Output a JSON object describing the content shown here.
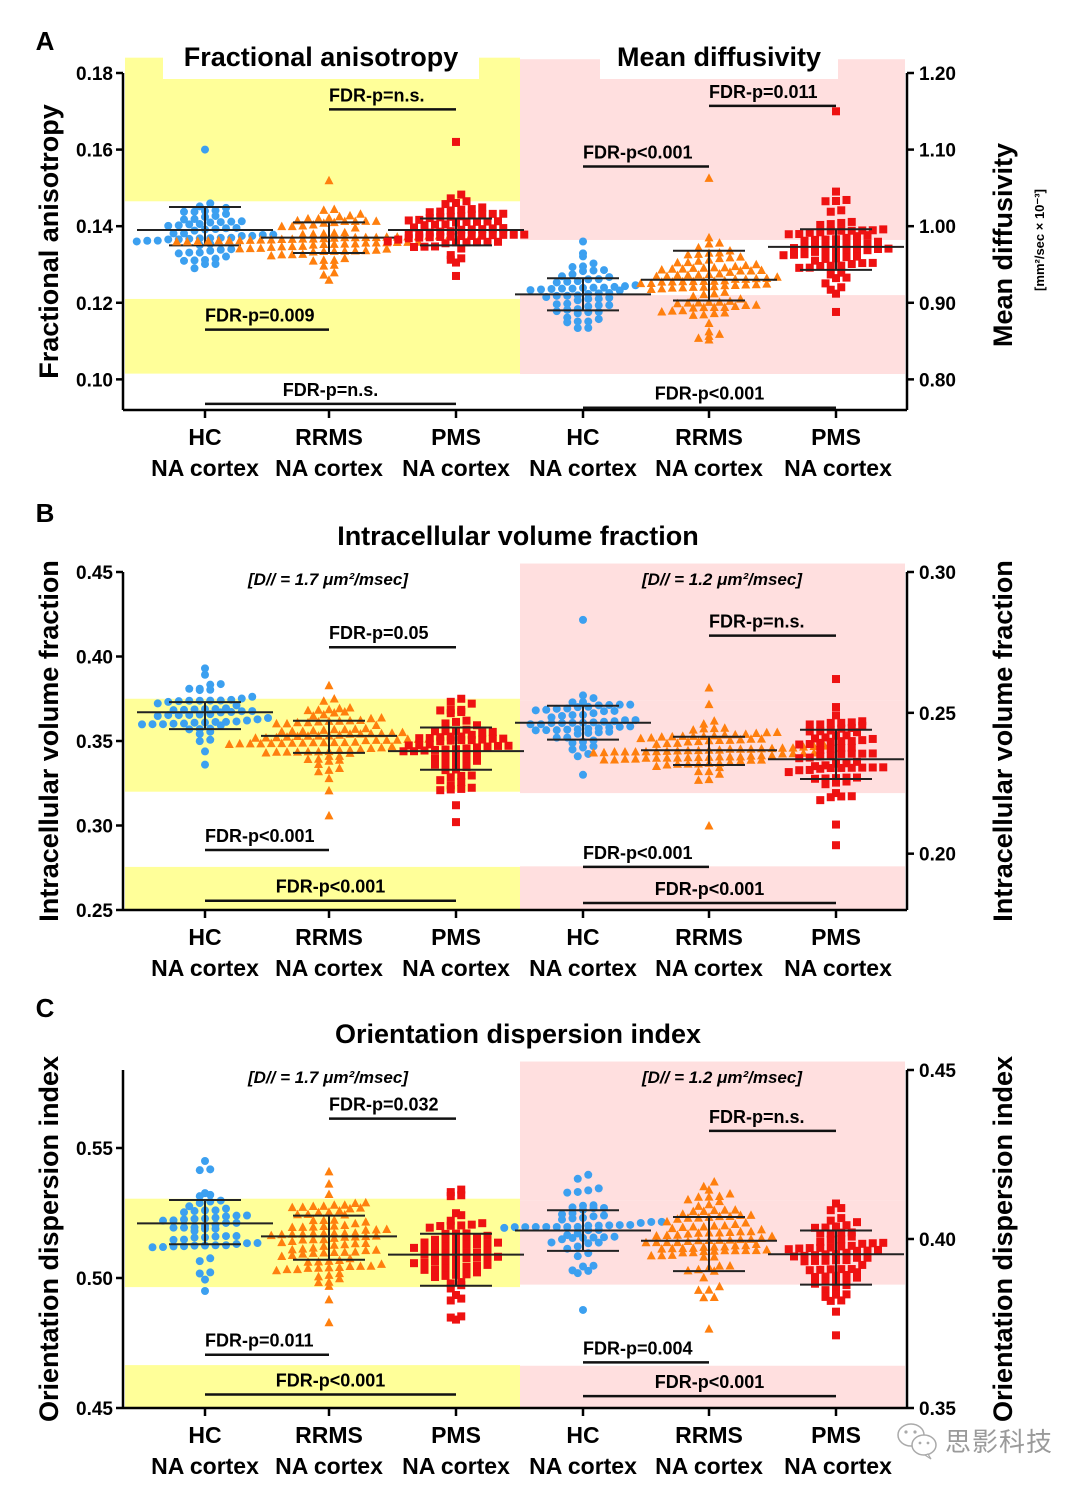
{
  "chart_data": [
    {
      "panel_label": "A",
      "type": "scatter",
      "subtype": "dot-plot with mean ± SD",
      "left_title": "Fractional anisotropy",
      "right_title": "Mean diffusivity",
      "left_ylabel": "Fractional anisotropy",
      "right_ylabel": "Mean diffusivity",
      "right_ylabel_units": "[mm²/sec × 10⁻³]",
      "left_ylim": [
        0.092,
        0.18
      ],
      "right_ylim": [
        0.76,
        1.2
      ],
      "left_yticks": [
        "0.10",
        "0.12",
        "0.14",
        "0.16",
        "0.18"
      ],
      "right_yticks": [
        "0.80",
        "0.90",
        "1.00",
        "1.10",
        "1.20"
      ],
      "categories": [
        "HC",
        "RRMS",
        "PMS",
        "HC",
        "RRMS",
        "PMS"
      ],
      "category_sublabel": "NA cortex",
      "series": [
        {
          "name": "HC FA",
          "axis": "left",
          "marker": "circle",
          "color": "#3ca0f0",
          "n": 58,
          "mean": 0.139,
          "sd_low": 0.135,
          "sd_high": 0.145,
          "min": 0.129,
          "max": 0.16
        },
        {
          "name": "RRMS FA",
          "axis": "left",
          "marker": "triangle",
          "color": "#ff7f0e",
          "n": 95,
          "mean": 0.137,
          "sd_low": 0.133,
          "sd_high": 0.141,
          "min": 0.126,
          "max": 0.152
        },
        {
          "name": "PMS FA",
          "axis": "left",
          "marker": "square",
          "color": "#ee1111",
          "n": 70,
          "mean": 0.139,
          "sd_low": 0.135,
          "sd_high": 0.142,
          "min": 0.127,
          "max": 0.162
        },
        {
          "name": "HC MD",
          "axis": "right",
          "marker": "circle",
          "color": "#3ca0f0",
          "n": 58,
          "mean": 0.911,
          "sd_low": 0.89,
          "sd_high": 0.932,
          "min": 0.867,
          "max": 0.98
        },
        {
          "name": "RRMS MD",
          "axis": "right",
          "marker": "triangle",
          "color": "#ff7f0e",
          "n": 95,
          "mean": 0.93,
          "sd_low": 0.903,
          "sd_high": 0.968,
          "min": 0.852,
          "max": 1.063
        },
        {
          "name": "PMS MD",
          "axis": "right",
          "marker": "square",
          "color": "#ee1111",
          "n": 70,
          "mean": 0.973,
          "sd_low": 0.943,
          "sd_high": 0.996,
          "min": 0.888,
          "max": 1.15
        }
      ],
      "shading": [
        {
          "side": "left",
          "color": "#ffff99",
          "bands": [
            [
              0.1465,
              0.184
            ],
            [
              0.1015,
              0.121
            ]
          ]
        },
        {
          "side": "right",
          "color": "#ffdfdf",
          "bands": [
            [
              0.982,
              1.218
            ],
            [
              0.807,
              0.91
            ]
          ]
        }
      ],
      "comparisons": [
        {
          "label": "FDR-p=n.s.",
          "from": 1,
          "to": 2,
          "axis": "left",
          "y": 0.1705
        },
        {
          "label": "FDR-p=0.009",
          "from": 0,
          "to": 1,
          "axis": "left",
          "y": 0.113
        },
        {
          "label": "FDR-p=n.s.",
          "from": 0,
          "to": 2,
          "axis": "left",
          "y": 0.0936
        },
        {
          "label": "FDR-p=0.011",
          "from": 4,
          "to": 5,
          "axis": "right",
          "y": 1.157
        },
        {
          "label": "FDR-p<0.001",
          "from": 3,
          "to": 4,
          "axis": "right",
          "y": 1.078
        },
        {
          "label": "FDR-p<0.001",
          "from": 3,
          "to": 5,
          "axis": "right",
          "y": 0.763
        }
      ]
    },
    {
      "panel_label": "B",
      "type": "scatter",
      "subtype": "dot-plot with mean ± SD",
      "title": "Intracellular volume fraction",
      "left_subtitle": "[D// = 1.7 μm²/msec]",
      "right_subtitle": "[D// = 1.2 μm²/msec]",
      "left_ylabel": "Intracellular volume fraction",
      "right_ylabel": "Intracellular volume fraction",
      "left_ylim": [
        0.25,
        0.45
      ],
      "right_ylim": [
        0.18,
        0.3
      ],
      "left_yticks": [
        "0.25",
        "0.30",
        "0.35",
        "0.40",
        "0.45"
      ],
      "right_yticks": [
        "0.20",
        "0.25",
        "0.30"
      ],
      "categories": [
        "HC",
        "RRMS",
        "PMS",
        "HC",
        "RRMS",
        "PMS"
      ],
      "category_sublabel": "NA cortex",
      "series": [
        {
          "name": "HC ICVF 1.7",
          "axis": "left",
          "marker": "circle",
          "color": "#3ca0f0",
          "n": 58,
          "mean": 0.367,
          "sd_low": 0.357,
          "sd_high": 0.373,
          "min": 0.336,
          "max": 0.393
        },
        {
          "name": "RRMS ICVF 1.7",
          "axis": "left",
          "marker": "triangle",
          "color": "#ff7f0e",
          "n": 95,
          "mean": 0.353,
          "sd_low": 0.343,
          "sd_high": 0.362,
          "min": 0.306,
          "max": 0.383
        },
        {
          "name": "PMS ICVF 1.7",
          "axis": "left",
          "marker": "square",
          "color": "#ee1111",
          "n": 70,
          "mean": 0.344,
          "sd_low": 0.333,
          "sd_high": 0.358,
          "min": 0.302,
          "max": 0.375
        },
        {
          "name": "HC ICVF 1.2",
          "axis": "right",
          "marker": "circle",
          "color": "#3ca0f0",
          "n": 58,
          "mean": 0.2465,
          "sd_low": 0.2405,
          "sd_high": 0.2525,
          "min": 0.228,
          "max": 0.283
        },
        {
          "name": "RRMS ICVF 1.2",
          "axis": "right",
          "marker": "triangle",
          "color": "#ff7f0e",
          "n": 95,
          "mean": 0.2367,
          "sd_low": 0.2315,
          "sd_high": 0.2415,
          "min": 0.21,
          "max": 0.259
        },
        {
          "name": "PMS ICVF 1.2",
          "axis": "right",
          "marker": "square",
          "color": "#ee1111",
          "n": 70,
          "mean": 0.2335,
          "sd_low": 0.2265,
          "sd_high": 0.244,
          "min": 0.203,
          "max": 0.262
        }
      ],
      "shading": [
        {
          "side": "left",
          "color": "#ffff99",
          "bands": [
            [
              0.32,
              0.375
            ],
            [
              0.25,
              0.2755
            ]
          ]
        },
        {
          "side": "right",
          "color": "#ffdfdf",
          "bands": [
            [
              0.2215,
              0.2545
            ],
            [
              0.18,
              0.1955
            ],
            [
              0.2545,
              0.303
            ]
          ]
        }
      ],
      "comparisons": [
        {
          "label": "FDR-p=0.05",
          "from": 1,
          "to": 2,
          "axis": "left",
          "y": 0.4055
        },
        {
          "label": "FDR-p<0.001",
          "from": 0,
          "to": 1,
          "axis": "left",
          "y": 0.2855
        },
        {
          "label": "FDR-p<0.001",
          "from": 0,
          "to": 2,
          "axis": "left",
          "y": 0.2555
        },
        {
          "label": "FDR-p=n.s.",
          "from": 4,
          "to": 5,
          "axis": "right",
          "y": 0.2774
        },
        {
          "label": "FDR-p<0.001",
          "from": 3,
          "to": 4,
          "axis": "right",
          "y": 0.1953
        },
        {
          "label": "FDR-p<0.001",
          "from": 3,
          "to": 5,
          "axis": "right",
          "y": 0.1825
        }
      ]
    },
    {
      "panel_label": "C",
      "type": "scatter",
      "subtype": "dot-plot with mean ± SD",
      "title": "Orientation dispersion index",
      "left_subtitle": "[D// = 1.7 μm²/msec]",
      "right_subtitle": "[D// = 1.2 μm²/msec]",
      "left_ylabel": "Orientation dispersion index",
      "right_ylabel": "Orientation dispersion index",
      "left_ylim": [
        0.45,
        0.58
      ],
      "right_ylim": [
        0.35,
        0.45
      ],
      "left_yticks": [
        "0.45",
        "0.50",
        "0.55"
      ],
      "right_yticks": [
        "0.35",
        "0.40",
        "0.45"
      ],
      "categories": [
        "HC",
        "RRMS",
        "PMS",
        "HC",
        "RRMS",
        "PMS"
      ],
      "category_sublabel": "NA cortex",
      "series": [
        {
          "name": "HC ODI 1.7",
          "axis": "left",
          "marker": "circle",
          "color": "#3ca0f0",
          "n": 58,
          "mean": 0.521,
          "sd_low": 0.513,
          "sd_high": 0.53,
          "min": 0.495,
          "max": 0.545
        },
        {
          "name": "RRMS ODI 1.7",
          "axis": "left",
          "marker": "triangle",
          "color": "#ff7f0e",
          "n": 95,
          "mean": 0.516,
          "sd_low": 0.507,
          "sd_high": 0.524,
          "min": 0.483,
          "max": 0.541
        },
        {
          "name": "PMS ODI 1.7",
          "axis": "left",
          "marker": "square",
          "color": "#ee1111",
          "n": 70,
          "mean": 0.509,
          "sd_low": 0.497,
          "sd_high": 0.517,
          "min": 0.484,
          "max": 0.534
        },
        {
          "name": "HC ODI 1.2",
          "axis": "right",
          "marker": "circle",
          "color": "#3ca0f0",
          "n": 58,
          "mean": 0.4025,
          "sd_low": 0.3965,
          "sd_high": 0.4085,
          "min": 0.379,
          "max": 0.419
        },
        {
          "name": "RRMS ODI 1.2",
          "axis": "right",
          "marker": "triangle",
          "color": "#ff7f0e",
          "n": 95,
          "mean": 0.3995,
          "sd_low": 0.3905,
          "sd_high": 0.4065,
          "min": 0.3735,
          "max": 0.417
        },
        {
          "name": "PMS ODI 1.2",
          "axis": "right",
          "marker": "square",
          "color": "#ee1111",
          "n": 70,
          "mean": 0.3955,
          "sd_low": 0.3865,
          "sd_high": 0.4025,
          "min": 0.3715,
          "max": 0.4105
        }
      ],
      "shading": [
        {
          "side": "left",
          "color": "#ffff99",
          "bands": [
            [
              0.4965,
              0.5305
            ],
            [
              0.45,
              0.4665
            ]
          ]
        },
        {
          "side": "right",
          "color": "#ffdfdf",
          "bands": [
            [
              0.3865,
              0.4115
            ],
            [
              0.35,
              0.3625
            ],
            [
              0.4115,
              0.4525
            ]
          ]
        }
      ],
      "comparisons": [
        {
          "label": "FDR-p=0.032",
          "from": 1,
          "to": 2,
          "axis": "left",
          "y": 0.5613
        },
        {
          "label": "FDR-p=0.011",
          "from": 0,
          "to": 1,
          "axis": "left",
          "y": 0.4705
        },
        {
          "label": "FDR-p<0.001",
          "from": 0,
          "to": 2,
          "axis": "left",
          "y": 0.4552
        },
        {
          "label": "FDR-p=n.s.",
          "from": 4,
          "to": 5,
          "axis": "right",
          "y": 0.432
        },
        {
          "label": "FDR-p=0.004",
          "from": 3,
          "to": 4,
          "axis": "right",
          "y": 0.3635
        },
        {
          "label": "FDR-p<0.001",
          "from": 3,
          "to": 5,
          "axis": "right",
          "y": 0.3535
        }
      ]
    }
  ],
  "watermark": {
    "text": "思影科技",
    "icon": "wechat-icon"
  }
}
